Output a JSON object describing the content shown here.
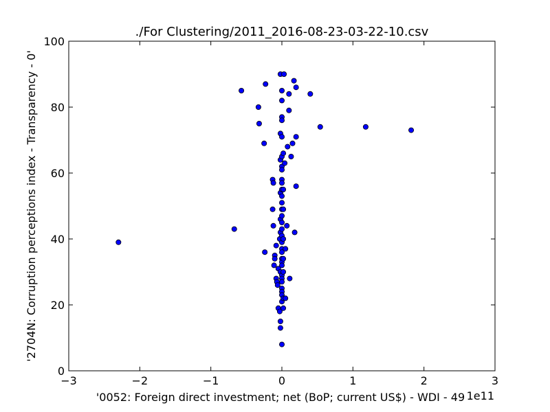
{
  "chart_data": {
    "type": "scatter",
    "title": "./For Clustering/2011_2016-08-23-03-22-10.csv",
    "xlabel": "'0052: Foreign direct investment; net  (BoP; current US$) - WDI - 49",
    "ylabel": "'2704N: Corruption perceptions index - Transparency - 0'",
    "x_offset_text": "1e11",
    "xlim": [
      -3,
      3
    ],
    "ylim": [
      0,
      100
    ],
    "x_ticks": [
      -3,
      -2,
      -1,
      0,
      1,
      2,
      3
    ],
    "x_tick_labels": [
      "−3",
      "−2",
      "−1",
      "0",
      "1",
      "2",
      "3"
    ],
    "y_ticks": [
      0,
      20,
      40,
      60,
      80,
      100
    ],
    "y_tick_labels": [
      "0",
      "20",
      "40",
      "60",
      "80",
      "100"
    ],
    "grid": false,
    "marker_color": "#0000ff",
    "marker_edge_color": "#000000",
    "points": [
      [
        -2.3,
        39
      ],
      [
        -0.67,
        43
      ],
      [
        -0.57,
        85
      ],
      [
        -0.33,
        80
      ],
      [
        -0.32,
        75
      ],
      [
        -0.25,
        69
      ],
      [
        -0.23,
        87
      ],
      [
        -0.24,
        36
      ],
      [
        -0.13,
        58
      ],
      [
        -0.12,
        57
      ],
      [
        -0.13,
        49
      ],
      [
        -0.12,
        44
      ],
      [
        -0.11,
        32
      ],
      [
        -0.1,
        35
      ],
      [
        -0.1,
        34
      ],
      [
        -0.08,
        38
      ],
      [
        -0.08,
        28
      ],
      [
        -0.07,
        27
      ],
      [
        -0.06,
        26
      ],
      [
        -0.05,
        31
      ],
      [
        -0.05,
        19
      ],
      [
        -0.03,
        40
      ],
      [
        -0.03,
        18
      ],
      [
        -0.02,
        90
      ],
      [
        -0.02,
        72
      ],
      [
        -0.02,
        64
      ],
      [
        -0.02,
        54
      ],
      [
        -0.02,
        46
      ],
      [
        -0.02,
        42
      ],
      [
        -0.02,
        30
      ],
      [
        -0.02,
        15
      ],
      [
        -0.02,
        13
      ],
      [
        0.0,
        85
      ],
      [
        0.0,
        82
      ],
      [
        0.0,
        77
      ],
      [
        0.0,
        76
      ],
      [
        0.0,
        71
      ],
      [
        0.0,
        65
      ],
      [
        0.0,
        62
      ],
      [
        0.0,
        61
      ],
      [
        0.0,
        58
      ],
      [
        0.0,
        57
      ],
      [
        0.0,
        55
      ],
      [
        0.0,
        53
      ],
      [
        0.0,
        51
      ],
      [
        0.0,
        49
      ],
      [
        0.0,
        47
      ],
      [
        0.0,
        45
      ],
      [
        0.0,
        43
      ],
      [
        0.0,
        41
      ],
      [
        0.0,
        39
      ],
      [
        0.0,
        37
      ],
      [
        0.0,
        36
      ],
      [
        0.0,
        34
      ],
      [
        0.0,
        33
      ],
      [
        0.0,
        32
      ],
      [
        0.0,
        29
      ],
      [
        0.0,
        28
      ],
      [
        0.0,
        27
      ],
      [
        0.0,
        25
      ],
      [
        0.0,
        24
      ],
      [
        0.0,
        23
      ],
      [
        0.0,
        21
      ],
      [
        0.0,
        8
      ],
      [
        0.02,
        66
      ],
      [
        0.02,
        55
      ],
      [
        0.02,
        49
      ],
      [
        0.02,
        40
      ],
      [
        0.02,
        34
      ],
      [
        0.02,
        30
      ],
      [
        0.02,
        22
      ],
      [
        0.02,
        19
      ],
      [
        0.03,
        90
      ],
      [
        0.04,
        63
      ],
      [
        0.05,
        37
      ],
      [
        0.05,
        22
      ],
      [
        0.07,
        44
      ],
      [
        0.08,
        68
      ],
      [
        0.1,
        84
      ],
      [
        0.1,
        79
      ],
      [
        0.11,
        28
      ],
      [
        0.13,
        65
      ],
      [
        0.15,
        69
      ],
      [
        0.17,
        88
      ],
      [
        0.18,
        42
      ],
      [
        0.2,
        86
      ],
      [
        0.2,
        71
      ],
      [
        0.2,
        56
      ],
      [
        0.4,
        84
      ],
      [
        0.54,
        74
      ],
      [
        1.18,
        74
      ],
      [
        1.82,
        73
      ]
    ]
  }
}
